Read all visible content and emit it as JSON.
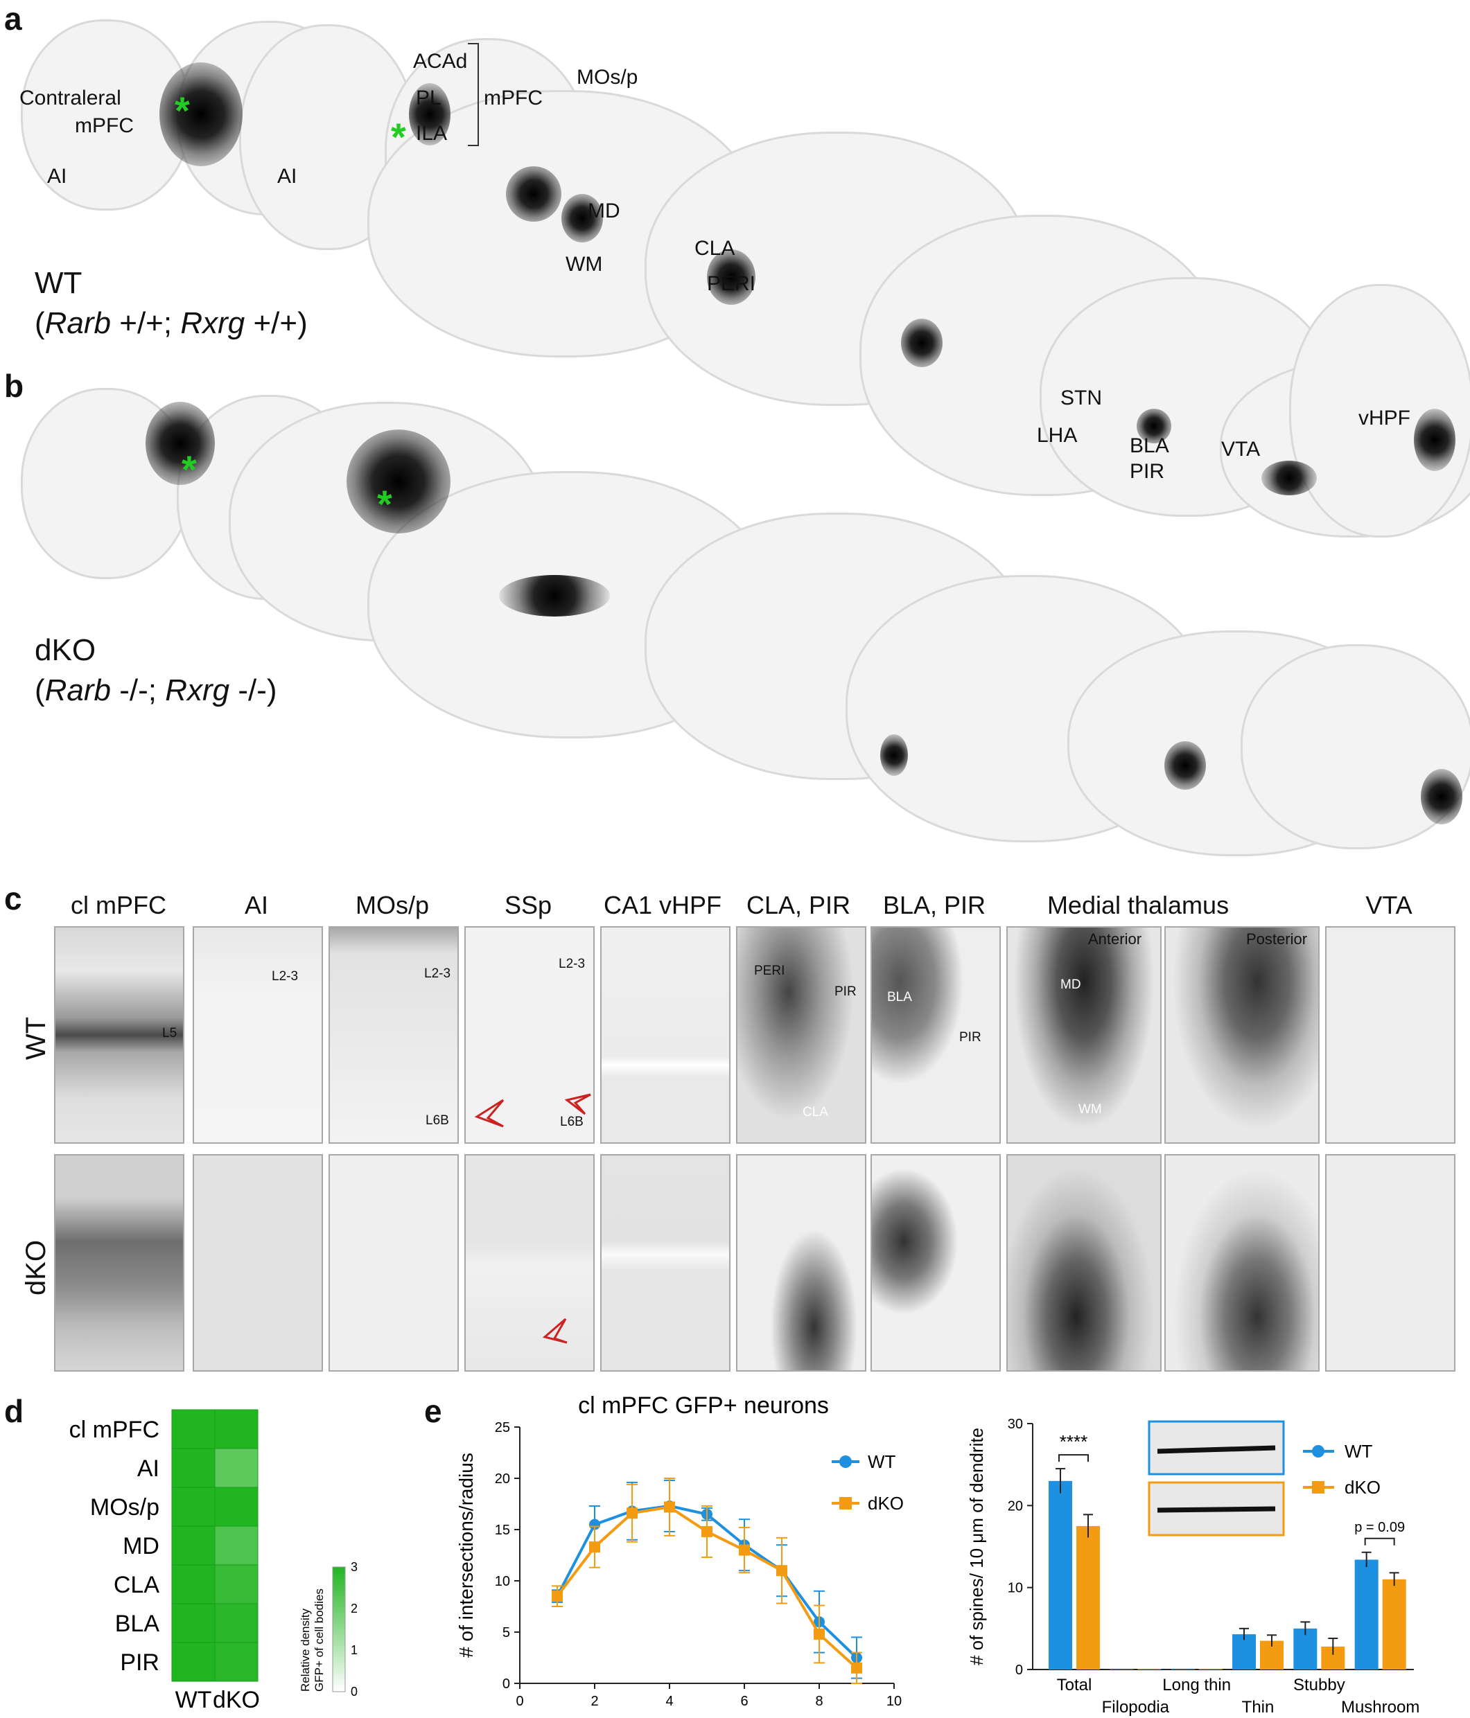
{
  "panel_a": {
    "letter": "a",
    "genotype_line1": "WT",
    "genotype_prefix": "(",
    "gene1": "Rarb",
    "gene1_state": " +/+; ",
    "gene2": "Rxrg",
    "gene2_state": " +/+)",
    "region_labels": {
      "contralateral": "Contraleral",
      "contra_mpfc": "mPFC",
      "ai1": "AI",
      "ai2": "AI",
      "acad": "ACAd",
      "pl": "PL",
      "ila": "ILA",
      "mpfc": "mPFC",
      "mos": "MOs/p",
      "md": "MD",
      "wm": "WM",
      "cla": "CLA",
      "peri": "PERI",
      "stn": "STN",
      "lha": "LHA",
      "bla": "BLA",
      "pir": "PIR",
      "vta": "VTA",
      "vhpf": "vHPF"
    },
    "injection_marker": "*"
  },
  "panel_b": {
    "letter": "b",
    "genotype_line1": "dKO",
    "genotype_prefix": "(",
    "gene1": "Rarb",
    "gene1_state": " -/-; ",
    "gene2": "Rxrg",
    "gene2_state": " -/-)",
    "injection_marker": "*"
  },
  "panel_c": {
    "letter": "c",
    "columns": [
      "cl mPFC",
      "AI",
      "MOs/p",
      "SSp",
      "CA1 vHPF",
      "CLA, PIR",
      "BLA, PIR",
      "Medial thalamus",
      "VTA"
    ],
    "rows": [
      "WT",
      "dKO"
    ],
    "sublabels": {
      "l5": "L5",
      "ai_l23": "L2-3",
      "mos_l23": "L2-3",
      "mos_l6b": "L6B",
      "ssp_l23": "L2-3",
      "ssp_l6b": "L6B",
      "peri": "PERI",
      "pir1": "PIR",
      "cla": "CLA",
      "bla": "BLA",
      "pir2": "PIR",
      "anterior": "Anterior",
      "posterior": "Posterior",
      "md": "MD",
      "wm": "WM"
    },
    "arrow_color": "#cc2222"
  },
  "panel_d": {
    "letter": "d",
    "chart_data": {
      "type": "heatmap",
      "rows": [
        "cl mPFC",
        "AI",
        "MOs/p",
        "MD",
        "CLA",
        "BLA",
        "PIR"
      ],
      "columns": [
        "WT",
        "dKO"
      ],
      "values": [
        [
          3,
          3
        ],
        [
          3,
          2.2
        ],
        [
          3,
          3
        ],
        [
          3,
          2.4
        ],
        [
          3,
          2.7
        ],
        [
          3,
          2.9
        ],
        [
          3,
          2.9
        ]
      ],
      "colorbar_label_line1": "Relative density",
      "colorbar_label_line2": "GFP+ of cell bodies",
      "colorbar_ticks": [
        "0",
        "1",
        "2",
        "3"
      ],
      "color_max": "#22b522",
      "color_min": "#ffffff"
    }
  },
  "panel_e_sholl": {
    "letter": "e",
    "chart_data": {
      "type": "line",
      "title": "cl mPFC GFP+ neurons",
      "ylabel": "# of intersections/radius",
      "x": [
        1,
        2,
        3,
        4,
        5,
        6,
        7,
        8,
        9
      ],
      "xlim": [
        0,
        10
      ],
      "ylim": [
        0,
        25
      ],
      "xticks": [
        "0",
        "2",
        "4",
        "6",
        "8",
        "10"
      ],
      "yticks": [
        "0",
        "5",
        "10",
        "15",
        "20",
        "25"
      ],
      "series": [
        {
          "name": "WT",
          "color": "#1e90e0",
          "marker": "circle",
          "values": [
            8.5,
            15.5,
            16.8,
            17.3,
            16.5,
            13.5,
            11.0,
            6.0,
            2.5
          ],
          "err": [
            0.6,
            1.8,
            2.8,
            2.5,
            0.6,
            2.5,
            2.5,
            3.0,
            2.0
          ]
        },
        {
          "name": "dKO",
          "color": "#f39c12",
          "marker": "square",
          "values": [
            8.5,
            13.3,
            16.6,
            17.2,
            14.8,
            13.0,
            11.0,
            4.8,
            1.5
          ],
          "err": [
            1.0,
            2.0,
            2.8,
            2.8,
            2.5,
            2.2,
            3.2,
            2.8,
            1.5
          ]
        }
      ]
    }
  },
  "panel_e_spines": {
    "chart_data": {
      "type": "bar",
      "ylabel": "# of  spines/ 10 μm of dendrite",
      "categories": [
        "Total",
        "Filopodia",
        "Long thin",
        "Thin",
        "Stubby",
        "Mushroom"
      ],
      "ylim": [
        0,
        30
      ],
      "yticks": [
        "0",
        "10",
        "20",
        "30"
      ],
      "series": [
        {
          "name": "WT",
          "color": "#1e90e0",
          "values": [
            23.0,
            0.1,
            0.1,
            4.3,
            5.0,
            13.4
          ],
          "err": [
            1.5,
            0,
            0,
            0.7,
            0.8,
            0.9
          ]
        },
        {
          "name": "dKO",
          "color": "#f39c12",
          "values": [
            17.5,
            0.1,
            0.1,
            3.5,
            2.8,
            11.0
          ],
          "err": [
            1.4,
            0,
            0,
            0.7,
            1.0,
            0.8
          ]
        }
      ],
      "annotations": [
        {
          "text": "****",
          "category": "Total"
        },
        {
          "text": "p = 0.09",
          "category": "Mushroom"
        }
      ]
    }
  }
}
